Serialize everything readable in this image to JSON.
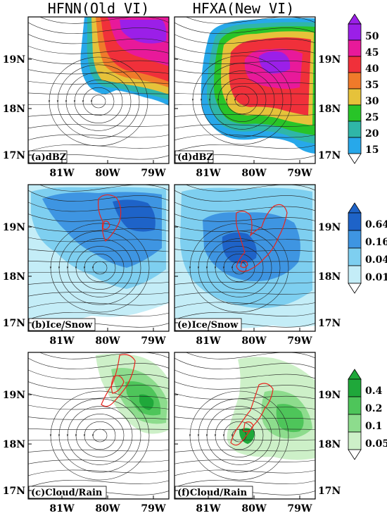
{
  "column_titles": [
    "HFNN(Old VI)",
    "HFXA(New VI)"
  ],
  "axes": {
    "x_ticks": [
      "81W",
      "80W",
      "79W"
    ],
    "y_ticks": [
      "19N",
      "18N",
      "17N"
    ]
  },
  "rows": [
    {
      "variable": "dBZ",
      "labels": [
        "(a)dBZ",
        "(d)dBZ"
      ],
      "colorbar": {
        "levels": [
          "50",
          "45",
          "40",
          "35",
          "30",
          "25",
          "20",
          "15"
        ],
        "colors": [
          "#9b1fe8",
          "#e8199a",
          "#f0303a",
          "#f07a2a",
          "#e6c23a",
          "#28c428",
          "#2fb6a8",
          "#27a8ea"
        ]
      }
    },
    {
      "variable": "Ice/Snow",
      "labels": [
        "(b)Ice/Snow",
        "(e)Ice/Snow"
      ],
      "colorbar": {
        "levels": [
          "0.64",
          "0.16",
          "0.04",
          "0.01"
        ],
        "colors": [
          "#1e63c8",
          "#3e95e2",
          "#7ecff0",
          "#c4edf7"
        ]
      }
    },
    {
      "variable": "Cloud/Rain",
      "labels": [
        "(c)Cloud/Rain",
        "(f)Cloud/Rain"
      ],
      "colorbar": {
        "levels": [
          "0.4",
          "0.2",
          "0.1",
          "0.05"
        ],
        "colors": [
          "#1fa83a",
          "#4ec55a",
          "#8ddc8d",
          "#cdf0c8"
        ]
      }
    }
  ],
  "colors": {
    "contour": "#e8251e",
    "streamline": "#222222"
  }
}
